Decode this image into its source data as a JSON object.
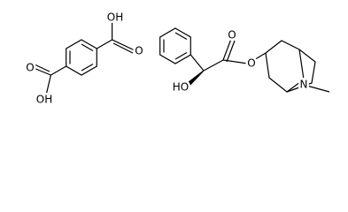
{
  "molecules": [
    {
      "atoms": [
        "OH",
        "O",
        "O",
        "OH"
      ]
    },
    {
      "atoms": [
        "O",
        "O",
        "HO",
        "N"
      ]
    }
  ]
}
